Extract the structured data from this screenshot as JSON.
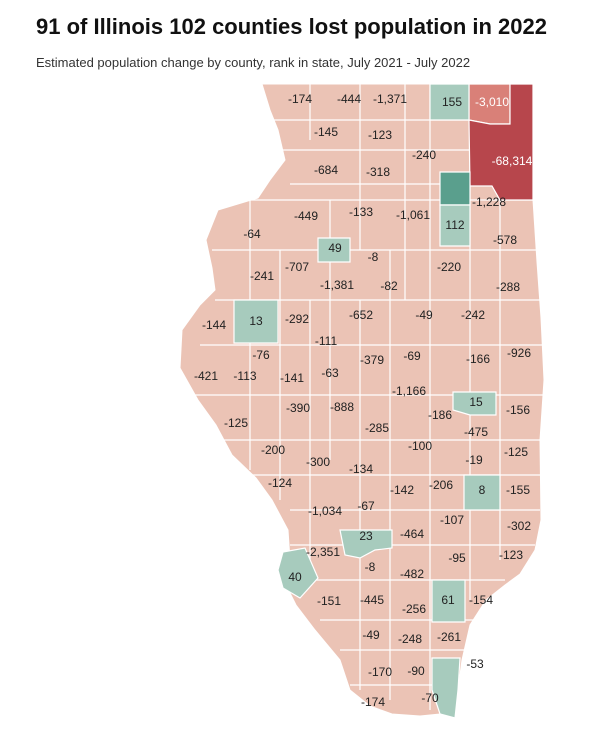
{
  "header": {
    "title": "91 of Illinois 102 counties lost population in 2022",
    "subtitle": "Estimated population change by county, rank in state, July 2021 - July 2022"
  },
  "colors": {
    "loss": "#ebc3b5",
    "loss_medium": "#d98078",
    "loss_large": "#b7464c",
    "gain": "#a7cbbd",
    "gain_large": "#5a9f8d",
    "border": "#ffffff"
  },
  "map": {
    "labels": [
      {
        "value": "-174"
      },
      {
        "value": "-444"
      },
      {
        "value": "-1,371"
      },
      {
        "value": "155"
      },
      {
        "value": "-3,010"
      },
      {
        "value": "-145"
      },
      {
        "value": "-123"
      },
      {
        "value": "-240"
      },
      {
        "value": "-68,314"
      },
      {
        "value": "-684"
      },
      {
        "value": "-318"
      },
      {
        "value": "-1,228"
      },
      {
        "value": "-449"
      },
      {
        "value": "-133"
      },
      {
        "value": "-1,061"
      },
      {
        "value": "112"
      },
      {
        "value": "-578"
      },
      {
        "value": "-64"
      },
      {
        "value": "49"
      },
      {
        "value": "-8"
      },
      {
        "value": "-241"
      },
      {
        "value": "-707"
      },
      {
        "value": "-220"
      },
      {
        "value": "-1,381"
      },
      {
        "value": "-82"
      },
      {
        "value": "-288"
      },
      {
        "value": "-144"
      },
      {
        "value": "13"
      },
      {
        "value": "-292"
      },
      {
        "value": "-652"
      },
      {
        "value": "-49"
      },
      {
        "value": "-242"
      },
      {
        "value": "-111"
      },
      {
        "value": "-76"
      },
      {
        "value": "-379"
      },
      {
        "value": "-69"
      },
      {
        "value": "-166"
      },
      {
        "value": "-926"
      },
      {
        "value": "-421"
      },
      {
        "value": "-113"
      },
      {
        "value": "-141"
      },
      {
        "value": "-63"
      },
      {
        "value": "-1,166"
      },
      {
        "value": "-390"
      },
      {
        "value": "-888"
      },
      {
        "value": "-186"
      },
      {
        "value": "15"
      },
      {
        "value": "-156"
      },
      {
        "value": "-125"
      },
      {
        "value": "-285"
      },
      {
        "value": "-475"
      },
      {
        "value": "-200"
      },
      {
        "value": "-100"
      },
      {
        "value": "-300"
      },
      {
        "value": "-134"
      },
      {
        "value": "-19"
      },
      {
        "value": "-125"
      },
      {
        "value": "-124"
      },
      {
        "value": "-142"
      },
      {
        "value": "-206"
      },
      {
        "value": "8"
      },
      {
        "value": "-155"
      },
      {
        "value": "-67"
      },
      {
        "value": "-1,034"
      },
      {
        "value": "-107"
      },
      {
        "value": "-302"
      },
      {
        "value": "23"
      },
      {
        "value": "-464"
      },
      {
        "value": "-2,351"
      },
      {
        "value": "-95"
      },
      {
        "value": "-123"
      },
      {
        "value": "-8"
      },
      {
        "value": "40"
      },
      {
        "value": "-482"
      },
      {
        "value": "-151"
      },
      {
        "value": "-445"
      },
      {
        "value": "-256"
      },
      {
        "value": "61"
      },
      {
        "value": "-154"
      },
      {
        "value": "-49"
      },
      {
        "value": "-248"
      },
      {
        "value": "-261"
      },
      {
        "value": "-53"
      },
      {
        "value": "-170"
      },
      {
        "value": "-90"
      },
      {
        "value": "-174"
      },
      {
        "value": "-70"
      }
    ]
  }
}
